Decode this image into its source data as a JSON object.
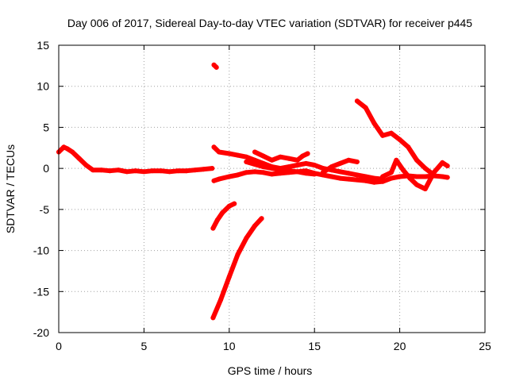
{
  "chart_data": {
    "type": "scatter",
    "title": "Day 006 of 2017, Sidereal Day-to-day VTEC variation (SDTVAR) for receiver p445",
    "xlabel": "GPS time / hours",
    "ylabel": "SDTVAR / TECUs",
    "xlim": [
      0,
      25
    ],
    "ylim": [
      -20,
      15
    ],
    "xticks": [
      0,
      5,
      10,
      15,
      20,
      25
    ],
    "yticks": [
      -20,
      -15,
      -10,
      -5,
      0,
      5,
      10,
      15
    ],
    "grid": true,
    "color": "#ff0000",
    "series": [
      {
        "name": "track-1",
        "x": [
          0.0,
          0.3,
          0.5,
          0.8,
          1.2,
          1.6,
          2.0,
          2.5,
          3.0,
          3.5,
          4.0,
          4.5,
          5.0,
          5.5,
          6.0,
          6.5,
          7.0,
          7.5,
          8.0,
          8.5,
          9.0
        ],
        "y": [
          2.0,
          2.6,
          2.4,
          2.0,
          1.2,
          0.4,
          -0.2,
          -0.2,
          -0.3,
          -0.2,
          -0.4,
          -0.3,
          -0.4,
          -0.3,
          -0.3,
          -0.4,
          -0.3,
          -0.3,
          -0.2,
          -0.1,
          0.0
        ]
      },
      {
        "name": "track-2",
        "x": [
          9.1,
          9.25
        ],
        "y": [
          12.6,
          12.3
        ]
      },
      {
        "name": "track-3",
        "x": [
          9.1,
          9.4,
          10.0,
          10.5,
          11.0,
          11.5,
          12.0,
          12.5,
          13.0,
          13.5,
          14.0,
          14.5,
          15.0,
          15.5,
          16.0,
          16.5,
          17.0,
          17.5,
          18.0,
          18.5,
          19.0,
          19.5,
          20.0,
          20.5,
          21.0,
          21.5,
          22.0,
          22.5,
          22.8
        ],
        "y": [
          -1.5,
          -1.3,
          -1.0,
          -0.8,
          -0.5,
          -0.4,
          -0.5,
          -0.7,
          -0.6,
          -0.5,
          -0.4,
          -0.3,
          -0.6,
          -0.8,
          -1.0,
          -1.2,
          -1.3,
          -1.4,
          -1.5,
          -1.7,
          -1.6,
          -1.2,
          -1.0,
          -0.9,
          -1.0,
          -1.0,
          -0.9,
          -1.0,
          -1.1
        ]
      },
      {
        "name": "track-4",
        "x": [
          9.1,
          9.4,
          10.0,
          10.5,
          11.0,
          11.5,
          12.0,
          12.5,
          13.0,
          13.5,
          14.0,
          14.5,
          15.0,
          15.5,
          16.0,
          16.5,
          17.0,
          17.5,
          18.0,
          18.5,
          19.0
        ],
        "y": [
          2.6,
          2.0,
          1.8,
          1.6,
          1.4,
          1.0,
          0.6,
          0.2,
          0.0,
          0.2,
          0.4,
          0.6,
          0.4,
          0.0,
          -0.2,
          -0.4,
          -0.6,
          -0.8,
          -1.0,
          -1.2,
          -1.3
        ]
      },
      {
        "name": "track-5",
        "x": [
          11.5,
          12.0,
          12.5,
          13.0,
          13.5,
          14.0,
          14.3,
          14.6
        ],
        "y": [
          2.0,
          1.5,
          1.0,
          1.4,
          1.2,
          1.0,
          1.5,
          1.8
        ]
      },
      {
        "name": "track-6",
        "x": [
          11.0,
          11.5,
          12.0,
          12.5,
          13.0,
          13.5,
          14.0,
          14.5,
          15.0
        ],
        "y": [
          0.8,
          0.5,
          0.2,
          0.0,
          -0.2,
          -0.3,
          -0.4,
          -0.6,
          -0.7
        ]
      },
      {
        "name": "track-7",
        "x": [
          15.5,
          16.0,
          16.5,
          17.0,
          17.5
        ],
        "y": [
          -0.5,
          0.2,
          0.6,
          1.0,
          0.8
        ]
      },
      {
        "name": "track-8",
        "x": [
          17.5,
          18.0,
          18.5,
          19.0,
          19.5,
          20.0,
          20.5,
          21.0,
          21.5,
          22.0
        ],
        "y": [
          8.2,
          7.4,
          5.5,
          4.0,
          4.3,
          3.5,
          2.6,
          1.0,
          0.0,
          -0.8
        ]
      },
      {
        "name": "track-9",
        "x": [
          19.0,
          19.5,
          19.8,
          20.2,
          20.6,
          21.0,
          21.5,
          22.0,
          22.5,
          22.8
        ],
        "y": [
          -1.0,
          -0.5,
          1.0,
          -0.2,
          -1.2,
          -2.0,
          -2.5,
          -0.5,
          0.7,
          0.3
        ]
      },
      {
        "name": "track-10",
        "x": [
          9.05,
          9.3,
          9.6,
          10.0,
          10.3
        ],
        "y": [
          -7.3,
          -6.3,
          -5.4,
          -4.6,
          -4.3
        ]
      },
      {
        "name": "track-11",
        "x": [
          9.05,
          9.5,
          10.0,
          10.5,
          11.0,
          11.5,
          11.9
        ],
        "y": [
          -18.2,
          -16.0,
          -13.2,
          -10.5,
          -8.5,
          -7.0,
          -6.1
        ]
      }
    ]
  }
}
